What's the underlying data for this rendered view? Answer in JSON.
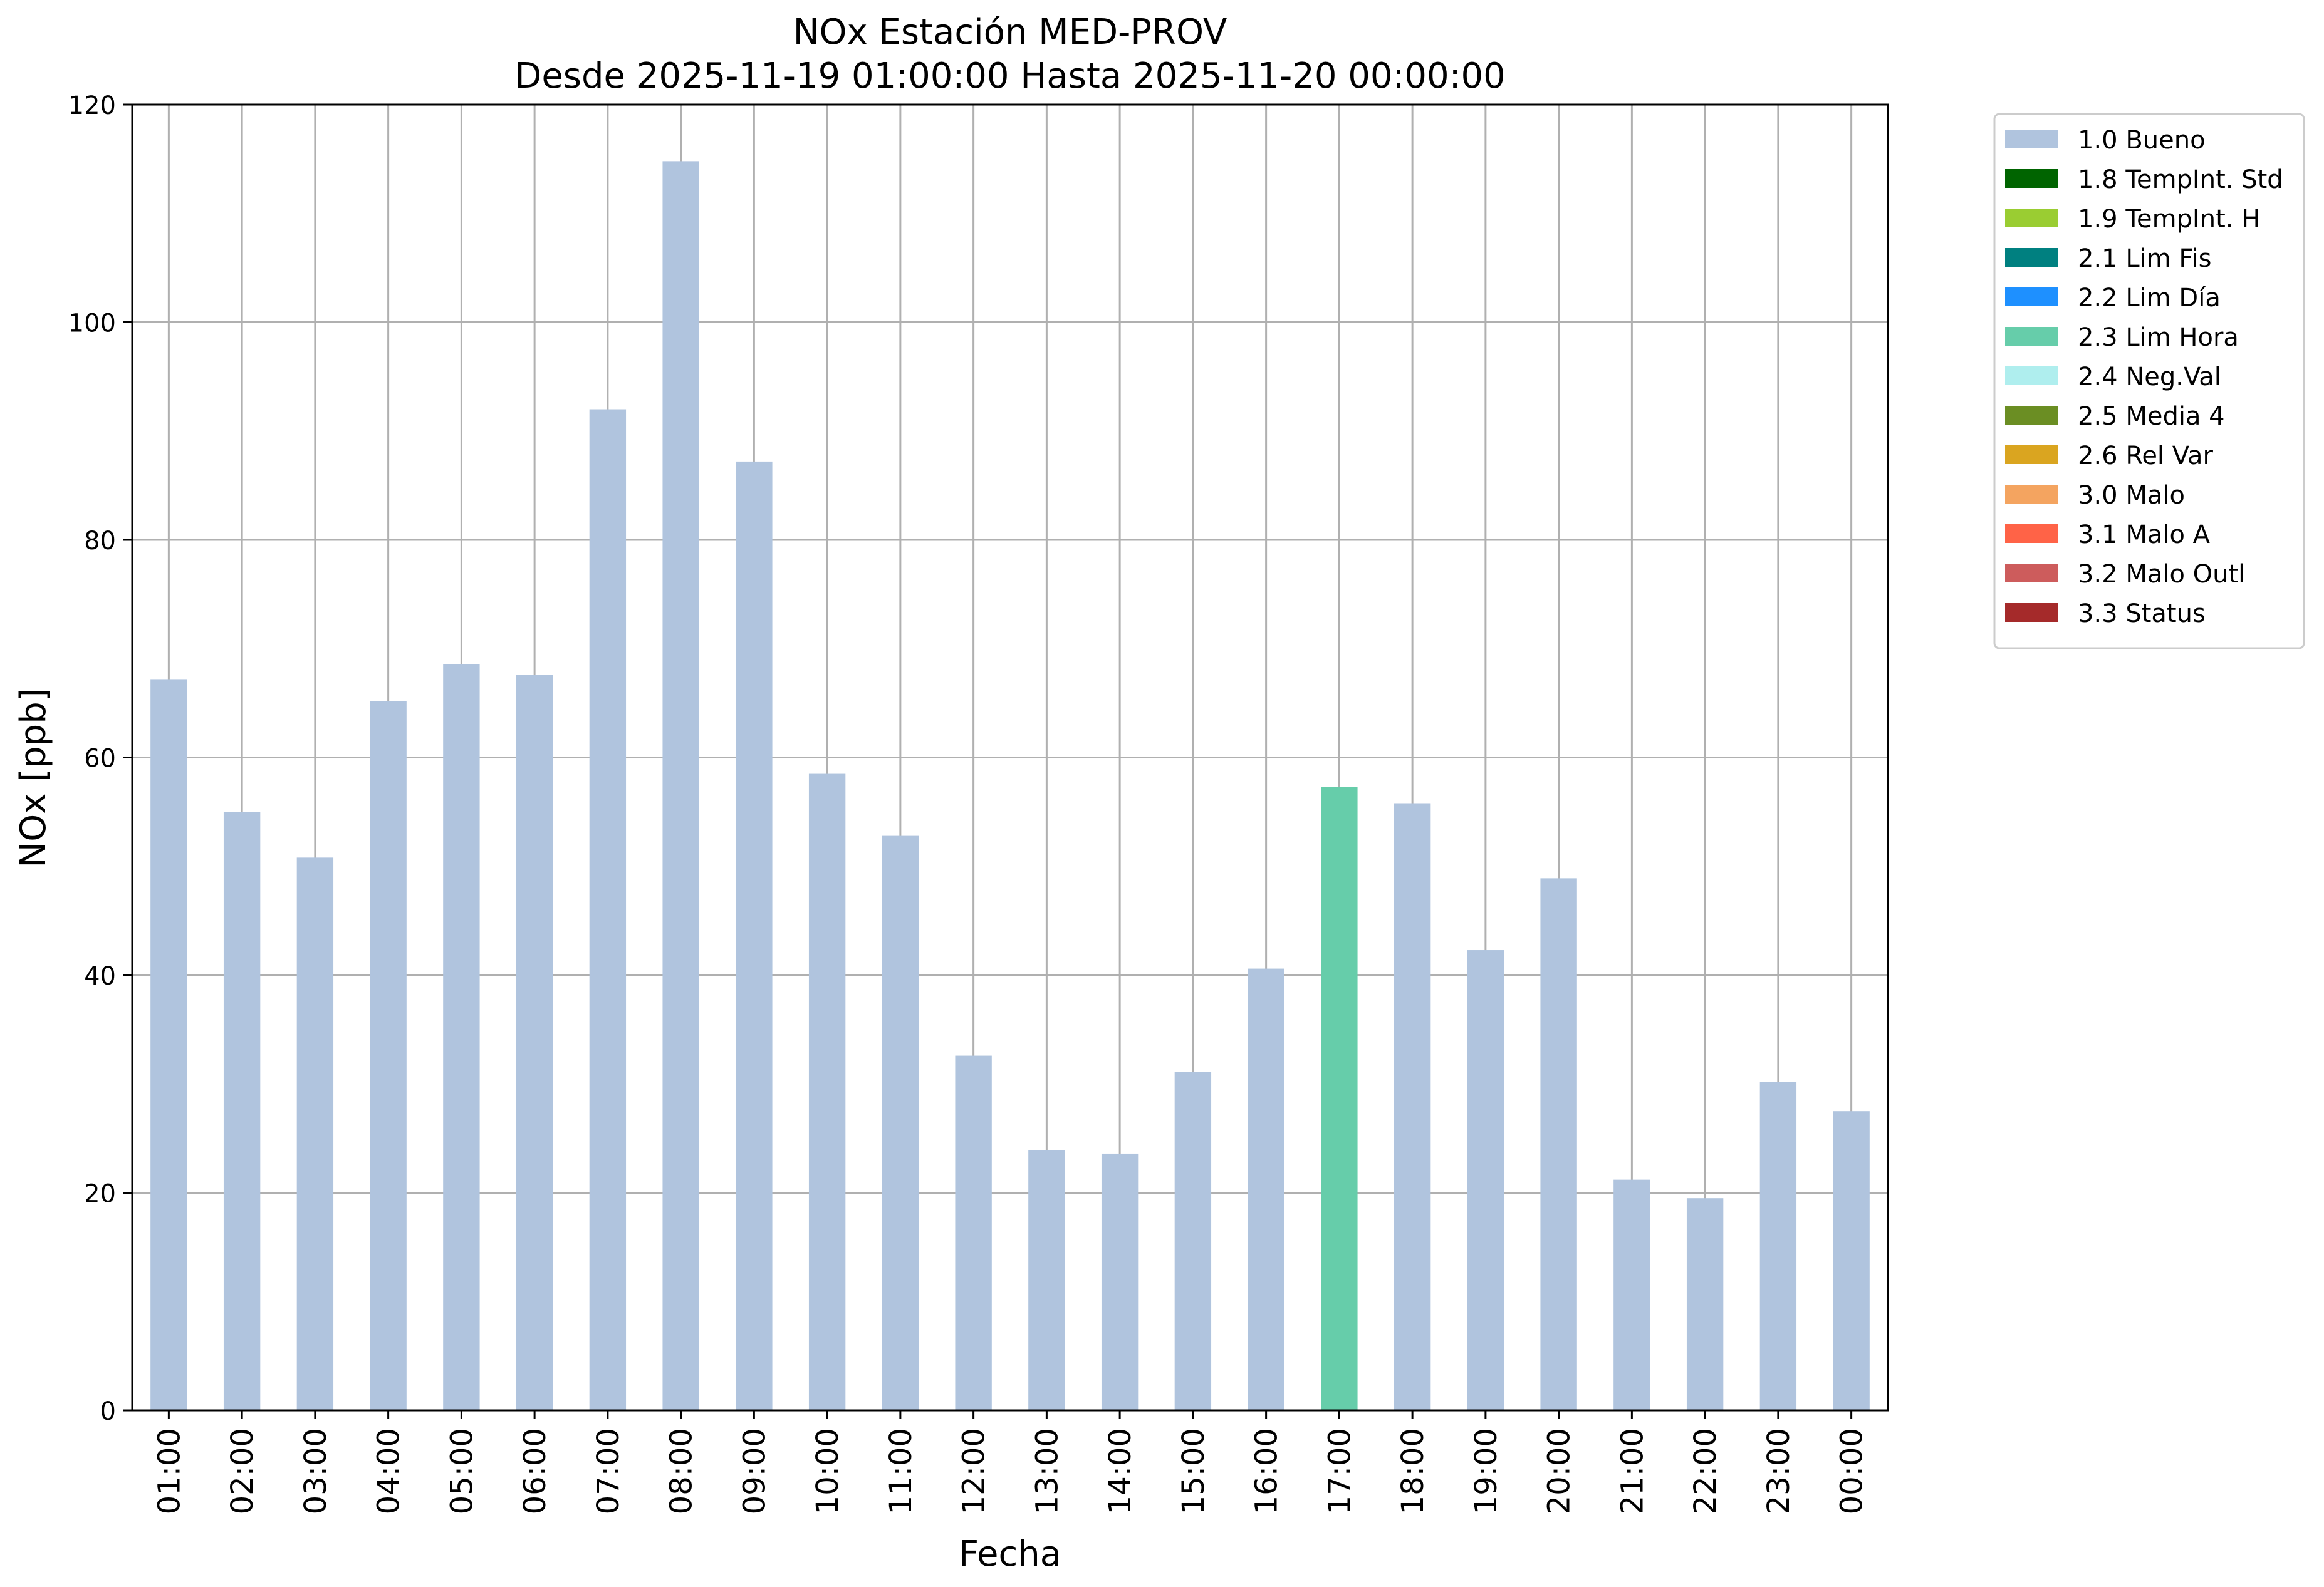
{
  "chart_data": {
    "type": "bar",
    "title": "NOx Estación MED-PROV",
    "subtitle": "Desde 2025-11-19 01:00:00 Hasta 2025-11-20 00:00:00",
    "xlabel": "Fecha",
    "ylabel": "NOx [ppb]",
    "ylim": [
      0,
      120
    ],
    "yticks": [
      0,
      20,
      40,
      60,
      80,
      100,
      120
    ],
    "grid": true,
    "legend_position": "outside-top-right",
    "categories": [
      "01:00",
      "02:00",
      "03:00",
      "04:00",
      "05:00",
      "06:00",
      "07:00",
      "08:00",
      "09:00",
      "10:00",
      "11:00",
      "12:00",
      "13:00",
      "14:00",
      "15:00",
      "16:00",
      "17:00",
      "18:00",
      "19:00",
      "20:00",
      "21:00",
      "22:00",
      "23:00",
      "00:00"
    ],
    "values": [
      67.2,
      55.0,
      50.8,
      65.2,
      68.6,
      67.6,
      92.0,
      114.8,
      87.2,
      58.5,
      52.8,
      32.6,
      23.9,
      23.6,
      31.1,
      40.6,
      57.3,
      55.8,
      42.3,
      48.9,
      21.2,
      19.5,
      30.2,
      27.5
    ],
    "flags": [
      "1.0 Bueno",
      "1.0 Bueno",
      "1.0 Bueno",
      "1.0 Bueno",
      "1.0 Bueno",
      "1.0 Bueno",
      "1.0 Bueno",
      "1.0 Bueno",
      "1.0 Bueno",
      "1.0 Bueno",
      "1.0 Bueno",
      "1.0 Bueno",
      "1.0 Bueno",
      "1.0 Bueno",
      "1.0 Bueno",
      "1.0 Bueno",
      "2.3 Lim Hora",
      "1.0 Bueno",
      "1.0 Bueno",
      "1.0 Bueno",
      "1.0 Bueno",
      "1.0 Bueno",
      "1.0 Bueno",
      "1.0 Bueno"
    ],
    "legend": [
      {
        "label": "1.0 Bueno",
        "color": "#b0c4de"
      },
      {
        "label": "1.8 TempInt. Std",
        "color": "#006400"
      },
      {
        "label": "1.9 TempInt. H",
        "color": "#9acd32"
      },
      {
        "label": "2.1 Lim Fis",
        "color": "#008080"
      },
      {
        "label": "2.2 Lim Día",
        "color": "#1e90ff"
      },
      {
        "label": "2.3 Lim Hora",
        "color": "#66cdaa"
      },
      {
        "label": "2.4 Neg.Val",
        "color": "#afeeee"
      },
      {
        "label": "2.5 Media 4",
        "color": "#6b8e23"
      },
      {
        "label": "2.6 Rel Var",
        "color": "#daa520"
      },
      {
        "label": "3.0 Malo",
        "color": "#f4a460"
      },
      {
        "label": "3.1 Malo A",
        "color": "#ff6347"
      },
      {
        "label": "3.2 Malo Outl",
        "color": "#cd5c5c"
      },
      {
        "label": "3.3 Status",
        "color": "#a52a2a"
      }
    ]
  }
}
